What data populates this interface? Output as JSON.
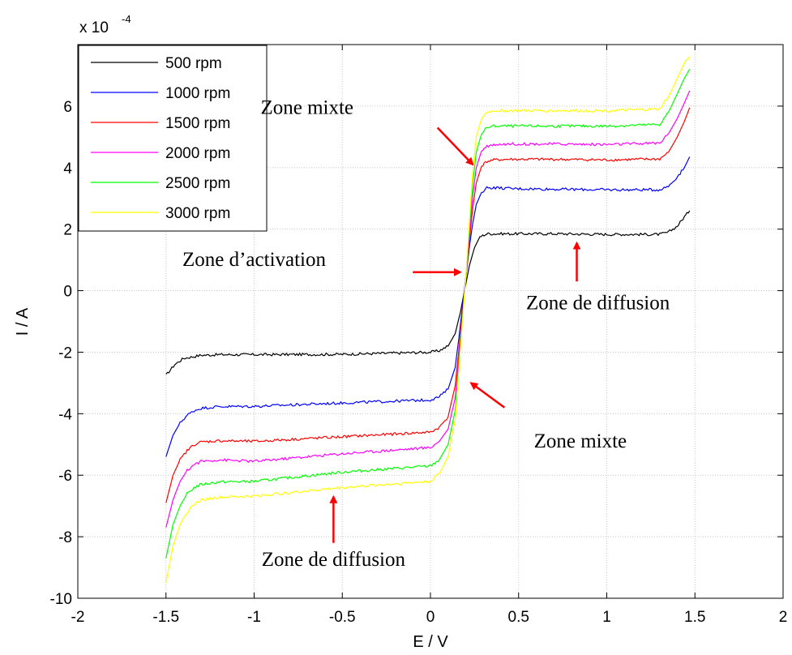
{
  "chart_data": {
    "type": "line",
    "xlabel": "E / V",
    "ylabel": "I / A",
    "y_multiplier_label": "x 10",
    "y_multiplier_exponent": "-4",
    "xlim": [
      -2,
      2
    ],
    "ylim": [
      -10,
      8
    ],
    "xticks": [
      -2,
      -1.5,
      -1,
      -0.5,
      0,
      0.5,
      1,
      1.5,
      2
    ],
    "xtick_labels": [
      "-2",
      "-1.5",
      "-1",
      "-0.5",
      "0",
      "0.5",
      "1",
      "1.5",
      "2"
    ],
    "yticks": [
      -10,
      -8,
      -6,
      -4,
      -2,
      0,
      2,
      4,
      6
    ],
    "ytick_labels": [
      "-10",
      "-8",
      "-6",
      "-4",
      "-2",
      "0",
      "2",
      "4",
      "6"
    ],
    "grid": true,
    "legend_position": "top-left",
    "series": [
      {
        "name": "500 rpm",
        "color": "#000000",
        "x": [
          -1.5,
          -1.45,
          -1.4,
          -1.3,
          -1.2,
          -1.0,
          -0.5,
          0.0,
          0.05,
          0.1,
          0.14,
          0.17,
          0.2,
          0.22,
          0.25,
          0.28,
          0.32,
          0.36,
          0.45,
          0.7,
          1.0,
          1.3,
          1.35,
          1.4,
          1.44,
          1.47
        ],
        "y": [
          -2.75,
          -2.4,
          -2.2,
          -2.1,
          -2.08,
          -2.08,
          -2.07,
          -2.0,
          -1.95,
          -1.8,
          -1.4,
          -0.7,
          0.2,
          0.8,
          1.4,
          1.75,
          1.85,
          1.85,
          1.85,
          1.85,
          1.83,
          1.83,
          1.9,
          2.1,
          2.4,
          2.6
        ]
      },
      {
        "name": "1000 rpm",
        "color": "#0000ff",
        "x": [
          -1.5,
          -1.46,
          -1.42,
          -1.38,
          -1.34,
          -1.3,
          -1.2,
          -1.0,
          -0.5,
          0.0,
          0.05,
          0.1,
          0.14,
          0.16,
          0.18,
          0.2,
          0.22,
          0.24,
          0.26,
          0.29,
          0.32,
          0.36,
          0.45,
          0.7,
          1.0,
          1.3,
          1.35,
          1.4,
          1.44,
          1.47
        ],
        "y": [
          -5.4,
          -4.7,
          -4.3,
          -4.05,
          -3.9,
          -3.82,
          -3.77,
          -3.76,
          -3.65,
          -3.55,
          -3.45,
          -3.2,
          -2.5,
          -1.6,
          -0.6,
          0.4,
          1.4,
          2.2,
          2.8,
          3.2,
          3.35,
          3.35,
          3.32,
          3.3,
          3.28,
          3.28,
          3.4,
          3.7,
          4.0,
          4.35
        ]
      },
      {
        "name": "1500 rpm",
        "color": "#ff0000",
        "x": [
          -1.5,
          -1.46,
          -1.42,
          -1.38,
          -1.34,
          -1.3,
          -1.2,
          -1.0,
          -0.5,
          0.0,
          0.05,
          0.1,
          0.14,
          0.16,
          0.18,
          0.2,
          0.22,
          0.24,
          0.26,
          0.29,
          0.32,
          0.36,
          0.45,
          0.7,
          1.0,
          1.3,
          1.35,
          1.4,
          1.44,
          1.47
        ],
        "y": [
          -6.9,
          -6.0,
          -5.5,
          -5.2,
          -5.0,
          -4.92,
          -4.88,
          -4.9,
          -4.75,
          -4.6,
          -4.45,
          -4.1,
          -3.1,
          -2.0,
          -0.8,
          0.4,
          1.6,
          2.7,
          3.5,
          4.05,
          4.2,
          4.25,
          4.27,
          4.27,
          4.25,
          4.28,
          4.5,
          5.0,
          5.5,
          5.95
        ]
      },
      {
        "name": "2000 rpm",
        "color": "#ff00ff",
        "x": [
          -1.5,
          -1.46,
          -1.42,
          -1.38,
          -1.34,
          -1.3,
          -1.2,
          -1.0,
          -0.5,
          0.0,
          0.05,
          0.1,
          0.14,
          0.16,
          0.18,
          0.2,
          0.22,
          0.24,
          0.26,
          0.29,
          0.32,
          0.36,
          0.45,
          0.7,
          1.0,
          1.3,
          1.35,
          1.4,
          1.44,
          1.47
        ],
        "y": [
          -7.7,
          -6.8,
          -6.2,
          -5.85,
          -5.65,
          -5.55,
          -5.5,
          -5.55,
          -5.3,
          -5.1,
          -4.9,
          -4.5,
          -3.5,
          -2.3,
          -0.9,
          0.4,
          1.8,
          3.1,
          4.0,
          4.55,
          4.7,
          4.75,
          4.77,
          4.77,
          4.75,
          4.8,
          5.1,
          5.6,
          6.1,
          6.5
        ]
      },
      {
        "name": "2500 rpm",
        "color": "#00ff00",
        "x": [
          -1.5,
          -1.46,
          -1.42,
          -1.38,
          -1.34,
          -1.3,
          -1.2,
          -1.0,
          -0.5,
          0.0,
          0.05,
          0.1,
          0.14,
          0.16,
          0.18,
          0.2,
          0.22,
          0.24,
          0.26,
          0.29,
          0.32,
          0.36,
          0.45,
          0.7,
          1.0,
          1.3,
          1.35,
          1.4,
          1.44,
          1.47
        ],
        "y": [
          -8.7,
          -7.6,
          -7.0,
          -6.6,
          -6.4,
          -6.3,
          -6.22,
          -6.2,
          -5.9,
          -5.7,
          -5.5,
          -5.0,
          -3.9,
          -2.5,
          -1.0,
          0.4,
          2.0,
          3.5,
          4.5,
          5.1,
          5.3,
          5.35,
          5.35,
          5.35,
          5.35,
          5.4,
          5.8,
          6.4,
          6.9,
          7.2
        ]
      },
      {
        "name": "3000 rpm",
        "color": "#ffff00",
        "x": [
          -1.5,
          -1.46,
          -1.42,
          -1.38,
          -1.34,
          -1.3,
          -1.2,
          -1.0,
          -0.5,
          0.0,
          0.05,
          0.1,
          0.14,
          0.16,
          0.18,
          0.2,
          0.22,
          0.24,
          0.26,
          0.29,
          0.32,
          0.36,
          0.45,
          0.7,
          1.0,
          1.3,
          1.35,
          1.4,
          1.44,
          1.47
        ],
        "y": [
          -9.5,
          -8.3,
          -7.6,
          -7.2,
          -6.95,
          -6.8,
          -6.72,
          -6.68,
          -6.4,
          -6.2,
          -5.95,
          -5.4,
          -4.2,
          -2.7,
          -1.1,
          0.4,
          2.2,
          3.9,
          5.0,
          5.6,
          5.8,
          5.85,
          5.85,
          5.85,
          5.85,
          5.9,
          6.3,
          6.9,
          7.4,
          7.6
        ]
      }
    ],
    "annotations": [
      {
        "text": "Zone mixte",
        "x": -0.7,
        "y": 5.75,
        "arrow_from": [
          0.04,
          5.3
        ],
        "arrow_to": [
          0.24,
          4.1
        ]
      },
      {
        "text": "Zone d’activation",
        "x": -1.0,
        "y": 0.8,
        "arrow_from": [
          -0.1,
          0.6
        ],
        "arrow_to": [
          0.17,
          0.6
        ]
      },
      {
        "text": "Zone de diffusion",
        "x": 0.95,
        "y": -0.6,
        "arrow_from": [
          0.83,
          0.3
        ],
        "arrow_to": [
          0.83,
          1.55
        ]
      },
      {
        "text": "Zone mixte",
        "x": 0.85,
        "y": -5.1,
        "arrow_from": [
          0.42,
          -3.8
        ],
        "arrow_to": [
          0.23,
          -3.0
        ]
      },
      {
        "text": "Zone de diffusion",
        "x": -0.55,
        "y": -8.95,
        "arrow_from": [
          -0.55,
          -8.2
        ],
        "arrow_to": [
          -0.55,
          -6.7
        ]
      }
    ]
  }
}
